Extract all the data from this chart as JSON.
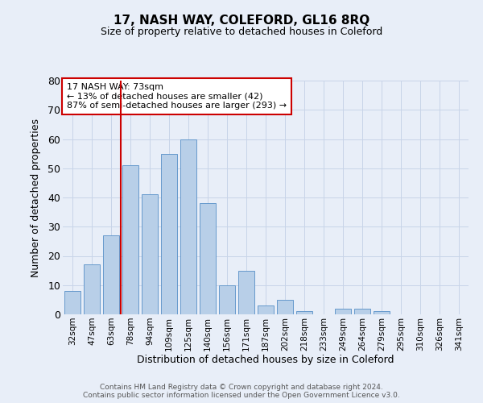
{
  "title": "17, NASH WAY, COLEFORD, GL16 8RQ",
  "subtitle": "Size of property relative to detached houses in Coleford",
  "xlabel": "Distribution of detached houses by size in Coleford",
  "ylabel": "Number of detached properties",
  "categories": [
    "32sqm",
    "47sqm",
    "63sqm",
    "78sqm",
    "94sqm",
    "109sqm",
    "125sqm",
    "140sqm",
    "156sqm",
    "171sqm",
    "187sqm",
    "202sqm",
    "218sqm",
    "233sqm",
    "249sqm",
    "264sqm",
    "279sqm",
    "295sqm",
    "310sqm",
    "326sqm",
    "341sqm"
  ],
  "values": [
    8,
    17,
    27,
    51,
    41,
    55,
    60,
    38,
    10,
    15,
    3,
    5,
    1,
    0,
    2,
    2,
    1,
    0,
    0,
    0,
    0
  ],
  "bar_color": "#b8cfe8",
  "bar_edge_color": "#6699cc",
  "vline_pos": 2.5,
  "vline_color": "#cc0000",
  "annotation_text": "17 NASH WAY: 73sqm\n← 13% of detached houses are smaller (42)\n87% of semi-detached houses are larger (293) →",
  "annotation_box_color": "#ffffff",
  "annotation_box_edge_color": "#cc0000",
  "ylim": [
    0,
    80
  ],
  "yticks": [
    0,
    10,
    20,
    30,
    40,
    50,
    60,
    70,
    80
  ],
  "grid_color": "#c8d4e8",
  "background_color": "#e8eef8",
  "footer_line1": "Contains HM Land Registry data © Crown copyright and database right 2024.",
  "footer_line2": "Contains public sector information licensed under the Open Government Licence v3.0."
}
